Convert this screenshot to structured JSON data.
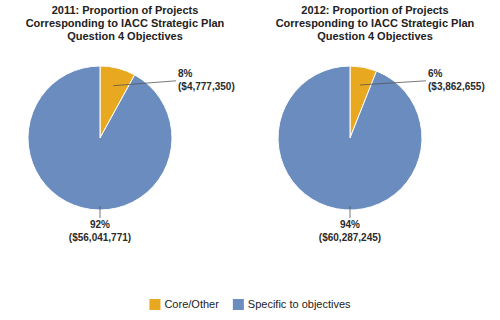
{
  "chart_data": [
    {
      "type": "pie",
      "title": "2011: Proportion of Projects\nCorresponding to IACC Strategic Plan\nQuestion 4 Objectives",
      "categories": [
        "Core/Other",
        "Specific to objectives"
      ],
      "values": [
        8,
        92
      ],
      "value_labels": [
        "8%",
        "92%"
      ],
      "annotations": [
        "($4,777,350)",
        "($56,041,771)"
      ],
      "colors": [
        "#E8A820",
        "#6B8CBE"
      ],
      "data_labels": true,
      "legend": "bottom"
    },
    {
      "type": "pie",
      "title": "2012: Proportion of Projects\nCorresponding to IACC Strategic Plan\nQuestion 4 Objectives",
      "categories": [
        "Core/Other",
        "Specific to objectives"
      ],
      "values": [
        6,
        94
      ],
      "value_labels": [
        "6%",
        "94%"
      ],
      "annotations": [
        "($3,862,655)",
        "($60,287,245)"
      ],
      "colors": [
        "#E8A820",
        "#6B8CBE"
      ],
      "data_labels": true
    }
  ]
}
